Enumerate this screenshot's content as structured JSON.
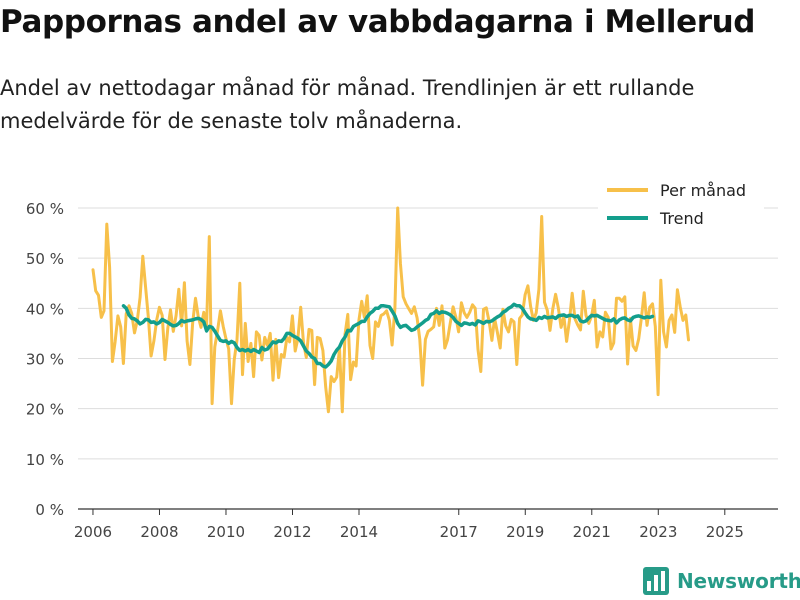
{
  "title": "Pappornas andel av vabbdagarna i Mellerud",
  "subtitle": "Andel av nettodagar månad för månad. Trendlinjen är ett rullande medelvärde för de senaste tolv månaderna.",
  "brand": "Newsworthy",
  "colors": {
    "per_month": "#f7c04a",
    "trend": "#139e8c",
    "grid": "#dddddd",
    "brand": "#279b88"
  },
  "chart_data": {
    "type": "line",
    "title": "Pappornas andel av vabbdagarna i Mellerud",
    "xlabel": "",
    "ylabel": "",
    "x_ticks": [
      "2006",
      "2008",
      "2010",
      "2012",
      "2014",
      "2017",
      "2019",
      "2021",
      "2023",
      "2025"
    ],
    "x_tick_positions": [
      2006.0,
      2008.0,
      2010.0,
      2012.0,
      2014.0,
      2017.0,
      2019.0,
      2021.0,
      2023.0,
      2025.0
    ],
    "y_ticks": [
      "0 %",
      "10 %",
      "20 %",
      "30 %",
      "40 %",
      "50 %",
      "60 %"
    ],
    "y_tick_values": [
      0,
      10,
      20,
      30,
      40,
      50,
      60
    ],
    "xlim": [
      2005.55,
      2026.6
    ],
    "ylim": [
      0,
      60
    ],
    "grid": true,
    "legend_position": "top-right",
    "series": [
      {
        "name": "Per månad",
        "x_start": 2006.0,
        "x_step": 0.0833,
        "values": [
          47.7,
          43.5,
          42.6,
          38.2,
          39.5,
          56.8,
          48.2,
          29.4,
          33.3,
          38.5,
          36.3,
          29.0,
          38.9,
          40.5,
          39.0,
          35.1,
          37.6,
          42.2,
          50.4,
          44.2,
          38.1,
          30.5,
          33.5,
          37.7,
          40.2,
          38.6,
          29.8,
          36.0,
          39.7,
          35.4,
          38.6,
          43.8,
          36.5,
          45.1,
          33.5,
          28.8,
          37.2,
          42.0,
          38.4,
          36.2,
          39.2,
          36.1,
          54.3,
          21.0,
          32.3,
          35.6,
          39.5,
          36.4,
          34.0,
          31.9,
          21.0,
          29.7,
          33.7,
          45.0,
          26.8,
          37.0,
          29.4,
          33.0,
          26.4,
          35.3,
          34.6,
          29.7,
          34.2,
          32.6,
          35.0,
          25.7,
          33.8,
          26.2,
          30.8,
          30.3,
          34.2,
          33.3,
          38.5,
          31.5,
          34.0,
          40.2,
          33.1,
          30.2,
          35.8,
          35.6,
          24.8,
          34.2,
          34.0,
          31.6,
          24.3,
          19.4,
          26.4,
          25.4,
          26.3,
          32.0,
          19.4,
          34.8,
          38.8,
          25.8,
          29.3,
          28.5,
          37.6,
          41.4,
          38.2,
          42.5,
          32.6,
          30.0,
          37.3,
          36.4,
          38.6,
          38.9,
          39.5,
          37.6,
          32.7,
          40.0,
          60.0,
          49.0,
          42.3,
          40.9,
          39.9,
          39.0,
          40.3,
          38.1,
          33.8,
          24.7,
          33.8,
          35.4,
          35.8,
          36.3,
          40.0,
          36.6,
          40.5,
          32.1,
          33.7,
          37.1,
          40.3,
          38.3,
          35.3,
          41.1,
          39.1,
          38.2,
          39.2,
          40.7,
          40.0,
          31.8,
          27.4,
          39.8,
          40.1,
          37.4,
          33.6,
          38.0,
          35.2,
          32.1,
          39.8,
          36.5,
          35.3,
          37.8,
          37.3,
          28.8,
          38.0,
          38.7,
          42.7,
          44.5,
          40.4,
          37.6,
          39.1,
          43.8,
          58.3,
          41.2,
          39.6,
          35.6,
          39.9,
          42.8,
          40.1,
          36.2,
          38.4,
          33.4,
          37.5,
          43.0,
          37.9,
          36.7,
          35.7,
          43.4,
          38.6,
          37.0,
          38.5,
          41.6,
          32.3,
          35.3,
          34.3,
          39.2,
          38.2,
          31.9,
          33.1,
          42.0,
          42.0,
          41.4,
          42.3,
          28.9,
          38.0,
          32.5,
          31.6,
          33.9,
          38.1,
          43.1,
          36.6,
          40.2,
          40.9,
          36.4,
          22.8,
          45.6,
          35.3,
          32.3,
          37.6,
          38.7,
          35.2,
          43.7,
          40.3,
          37.6,
          38.7,
          33.7
        ]
      },
      {
        "name": "Trend",
        "x_start": 2006.917,
        "x_step": 0.0833,
        "values": [
          40.5,
          40.0,
          38.7,
          38.0,
          37.9,
          37.5,
          36.9,
          37.2,
          37.8,
          37.7,
          37.2,
          37.3,
          36.9,
          37.2,
          37.8,
          37.5,
          37.2,
          36.8,
          36.5,
          36.6,
          37.0,
          37.6,
          37.3,
          37.5,
          37.6,
          37.7,
          37.9,
          38.0,
          37.8,
          37.3,
          35.5,
          36.4,
          36.2,
          35.4,
          34.5,
          33.6,
          33.4,
          33.5,
          33.0,
          33.4,
          33.1,
          32.2,
          31.6,
          31.8,
          31.5,
          31.8,
          31.4,
          31.8,
          31.5,
          31.2,
          32.2,
          31.7,
          31.9,
          32.6,
          33.3,
          33.1,
          33.5,
          33.4,
          34.0,
          35.0,
          35.0,
          34.6,
          34.3,
          34.0,
          33.5,
          32.5,
          31.5,
          31.0,
          30.3,
          30.0,
          29.0,
          29.0,
          28.5,
          28.3,
          28.8,
          29.5,
          30.8,
          31.7,
          32.3,
          33.5,
          34.3,
          35.6,
          35.5,
          36.4,
          36.7,
          37.0,
          37.4,
          37.4,
          38.3,
          39.0,
          39.4,
          40.0,
          40.0,
          40.5,
          40.5,
          40.4,
          40.3,
          39.4,
          38.5,
          37.0,
          36.2,
          36.5,
          36.6,
          36.1,
          35.6,
          35.8,
          36.3,
          36.7,
          37.1,
          37.6,
          37.9,
          38.8,
          39.0,
          39.5,
          39.0,
          39.3,
          39.2,
          39.0,
          38.7,
          38.2,
          37.4,
          37.0,
          36.6,
          37.1,
          37.0,
          36.8,
          37.0,
          36.7,
          37.5,
          37.3,
          37.0,
          37.4,
          37.3,
          37.5,
          37.9,
          38.3,
          38.6,
          39.2,
          39.5,
          40.0,
          40.3,
          40.8,
          40.5,
          40.5,
          40.0,
          39.1,
          38.3,
          37.9,
          37.8,
          37.6,
          38.2,
          38.0,
          38.4,
          38.1,
          38.2,
          38.3,
          38.0,
          38.5,
          38.6,
          38.7,
          38.4,
          38.6,
          38.6,
          38.3,
          38.5,
          37.5,
          37.3,
          37.5,
          38.1,
          38.6,
          38.5,
          38.6,
          38.3,
          38.0,
          37.7,
          37.6,
          37.5,
          37.9,
          37.1,
          37.7,
          38.0,
          38.1,
          37.7,
          37.5,
          38.2,
          38.4,
          38.5,
          38.3,
          38.1,
          38.3,
          38.2,
          38.4
        ]
      }
    ]
  }
}
